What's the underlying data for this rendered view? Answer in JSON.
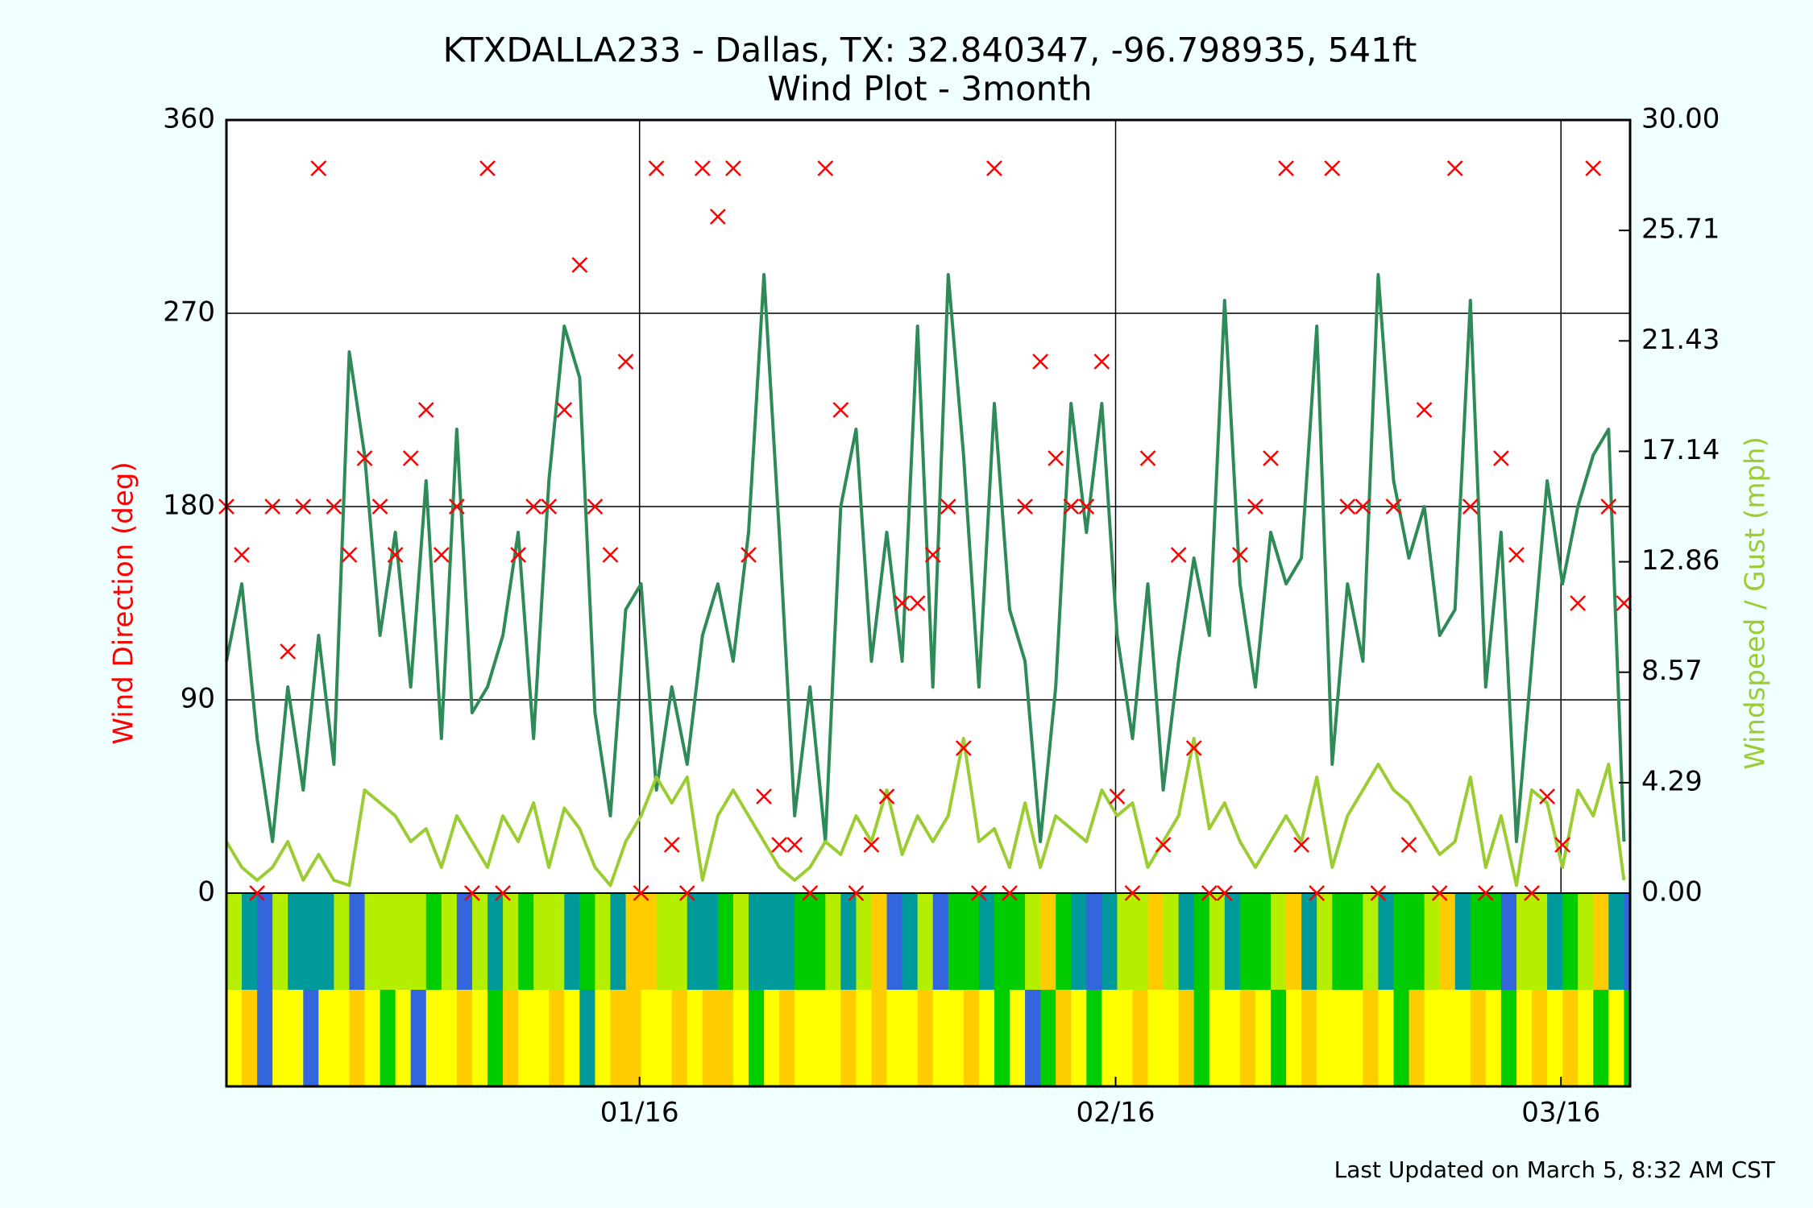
{
  "chart_data": {
    "type": "line",
    "title": "KTXDALLA233 - Dallas, TX: 32.840347, -96.798935, 541ft",
    "subtitle": "Wind Plot - 3month",
    "ylabel": "Wind Direction (deg)",
    "y2label": "Windspeed / Gust (mph)",
    "footer": "Last Updated on March 5, 8:32 AM CST",
    "grid": true,
    "x": [
      0,
      1,
      2,
      3,
      4,
      5,
      6,
      7,
      8,
      9,
      10,
      11,
      12,
      13,
      14,
      15,
      16,
      17,
      18,
      19,
      20,
      21,
      22,
      23,
      24,
      25,
      26,
      27,
      28,
      29,
      30,
      31,
      32,
      33,
      34,
      35,
      36,
      37,
      38,
      39,
      40,
      41,
      42,
      43,
      44,
      45,
      46,
      47,
      48,
      49,
      50,
      51,
      52,
      53,
      54,
      55,
      56,
      57,
      58,
      59,
      60,
      61,
      62,
      63,
      64,
      65,
      66,
      67,
      68,
      69,
      70,
      71,
      72,
      73,
      74,
      75,
      76,
      77,
      78,
      79,
      80,
      81,
      82,
      83,
      84,
      85,
      86,
      87,
      88,
      89,
      90,
      91
    ],
    "xlim": [
      0,
      91.4
    ],
    "xticks": [
      {
        "value": 26.9,
        "label": "01/16"
      },
      {
        "value": 57.9,
        "label": "02/16"
      },
      {
        "value": 86.9,
        "label": "03/16"
      }
    ],
    "ylim": [
      -90,
      360
    ],
    "yticks": [
      0,
      90,
      180,
      270,
      360
    ],
    "y2lim": [
      -7.5,
      30
    ],
    "y2ticks": [
      {
        "value": 0,
        "label": "0.00"
      },
      {
        "value": 4.2857,
        "label": "4.29"
      },
      {
        "value": 8.5714,
        "label": "8.57"
      },
      {
        "value": 12.8571,
        "label": "12.86"
      },
      {
        "value": 17.1429,
        "label": "17.14"
      },
      {
        "value": 21.4286,
        "label": "21.43"
      },
      {
        "value": 25.7143,
        "label": "25.71"
      },
      {
        "value": 30,
        "label": "30.00"
      }
    ],
    "series": [
      {
        "type": "scatter",
        "color": "#ff0000",
        "values": [
          180,
          157.5,
          0,
          180,
          112.5,
          180,
          337.5,
          180,
          157.5,
          202.5,
          180,
          157.5,
          202.5,
          225,
          157.5,
          180,
          0,
          337.5,
          0,
          157.5,
          180,
          180,
          225,
          292.5,
          180,
          157.5,
          247.5,
          0,
          337.5,
          22.5,
          0,
          337.5,
          315,
          337.5,
          157.5,
          45,
          22.5,
          22.5,
          0,
          337.5,
          225,
          0,
          22.5,
          45,
          135,
          135,
          157.5,
          180,
          67.5,
          0,
          337.5,
          0,
          180,
          247.5,
          202.5,
          180,
          180,
          247.5,
          45,
          0,
          202.5,
          22.5,
          157.5,
          67.5,
          0,
          0,
          157.5,
          180,
          202.5,
          337.5,
          22.5,
          0,
          337.5,
          180,
          180,
          0,
          180,
          22.5,
          225,
          0,
          337.5,
          180,
          0,
          202.5,
          157.5,
          0,
          45,
          22.5,
          135,
          337.5,
          180,
          135
        ]
      },
      {
        "type": "line",
        "axis": "y2",
        "color": "#2e8b57",
        "values": [
          9,
          12,
          6,
          2,
          8,
          4,
          10,
          5,
          21,
          17,
          10,
          14,
          8,
          16,
          6,
          18,
          7,
          8,
          10,
          14,
          6,
          16,
          22,
          20,
          7,
          3,
          11,
          12,
          4,
          8,
          5,
          10,
          12,
          9,
          14,
          24,
          14,
          3,
          8,
          2,
          15,
          18,
          9,
          14,
          9,
          22,
          8,
          24,
          17,
          8,
          19,
          11,
          9,
          2,
          8,
          19,
          14,
          19,
          10,
          6,
          12,
          4,
          9,
          13,
          10,
          23,
          12,
          8,
          14,
          12,
          13,
          22,
          5,
          12,
          9,
          24,
          16,
          13,
          15,
          10,
          11,
          23,
          8,
          14,
          2,
          9,
          16,
          12,
          15,
          17,
          18,
          2
        ]
      },
      {
        "type": "line",
        "axis": "y2",
        "color": "#9acd32",
        "values": [
          2,
          1,
          0.5,
          1,
          2,
          0.5,
          1.5,
          0.5,
          0.3,
          4,
          3.5,
          3,
          2,
          2.5,
          1,
          3,
          2,
          1,
          3,
          2,
          3.5,
          1,
          3.3,
          2.5,
          1,
          0.3,
          2,
          3,
          4.5,
          3.5,
          4.5,
          0.5,
          3,
          4,
          3,
          2,
          1,
          0.5,
          1,
          2,
          1.5,
          3,
          2,
          4,
          1.5,
          3,
          2,
          3,
          6,
          2,
          2.5,
          1,
          3.5,
          1,
          3,
          2.5,
          2,
          4,
          3,
          3.5,
          1,
          2,
          3,
          6,
          2.5,
          3.5,
          2,
          1,
          2,
          3,
          2,
          4.5,
          1,
          3,
          4,
          5,
          4,
          3.5,
          2.5,
          1.5,
          2,
          4.5,
          1,
          3,
          0.3,
          4,
          3.5,
          1,
          4,
          3,
          5,
          0.5
        ]
      }
    ],
    "bands": [
      {
        "colors": [
          "#b4ee00",
          "#009a9a",
          "#3366dd",
          "#b4ee00",
          "#009a9a",
          "#009a9a",
          "#009a9a",
          "#b4ee00",
          "#3366dd",
          "#b4ee00",
          "#b4ee00",
          "#b4ee00",
          "#b4ee00",
          "#00cc00",
          "#b4ee00",
          "#3366dd",
          "#b4ee00",
          "#009a9a",
          "#b4ee00",
          "#00cc00",
          "#b4ee00",
          "#b4ee00",
          "#009a9a",
          "#00cc00",
          "#b4ee00",
          "#009a9a",
          "#ffcc00",
          "#ffcc00",
          "#b4ee00",
          "#b4ee00",
          "#009a9a",
          "#009a9a",
          "#00cc00",
          "#b4ee00",
          "#009a9a",
          "#009a9a",
          "#009a9a",
          "#00cc00",
          "#00cc00",
          "#b4ee00",
          "#009a9a",
          "#b4ee00",
          "#ffcc00",
          "#3366dd",
          "#009a9a",
          "#b4ee00",
          "#3366dd",
          "#00cc00",
          "#00cc00",
          "#009a9a",
          "#00cc00",
          "#00cc00",
          "#b4ee00",
          "#ffcc00",
          "#00cc00",
          "#009a9a",
          "#3366dd",
          "#009a9a",
          "#b4ee00",
          "#b4ee00",
          "#ffcc00",
          "#b4ee00",
          "#009a9a",
          "#00cc00",
          "#b4ee00",
          "#009a9a",
          "#00cc00",
          "#00cc00",
          "#b4ee00",
          "#ffcc00",
          "#009a9a",
          "#b4ee00",
          "#00cc00",
          "#00cc00",
          "#b4ee00",
          "#009a9a",
          "#00cc00",
          "#00cc00",
          "#b4ee00",
          "#ffcc00",
          "#009a9a",
          "#00cc00",
          "#00cc00",
          "#3366dd",
          "#b4ee00",
          "#b4ee00",
          "#009a9a",
          "#00cc00",
          "#b4ee00",
          "#ffcc00",
          "#009a9a",
          "#3366dd"
        ]
      },
      {
        "colors": [
          "#ffff00",
          "#ffcc00",
          "#3366dd",
          "#ffff00",
          "#ffff00",
          "#3366dd",
          "#ffff00",
          "#ffff00",
          "#ffcc00",
          "#ffff00",
          "#00cc00",
          "#ffff00",
          "#3366dd",
          "#ffff00",
          "#ffff00",
          "#ffcc00",
          "#ffff00",
          "#00cc00",
          "#ffcc00",
          "#ffff00",
          "#ffff00",
          "#ffcc00",
          "#ffff00",
          "#009a9a",
          "#ffff00",
          "#ffcc00",
          "#ffcc00",
          "#ffff00",
          "#ffff00",
          "#ffcc00",
          "#ffff00",
          "#ffcc00",
          "#ffcc00",
          "#ffff00",
          "#00cc00",
          "#ffff00",
          "#ffcc00",
          "#ffff00",
          "#ffff00",
          "#ffff00",
          "#ffcc00",
          "#ffff00",
          "#ffcc00",
          "#ffff00",
          "#ffff00",
          "#ffcc00",
          "#ffff00",
          "#ffff00",
          "#ffcc00",
          "#ffff00",
          "#00cc00",
          "#ffff00",
          "#3366dd",
          "#00cc00",
          "#ffcc00",
          "#ffff00",
          "#00cc00",
          "#ffff00",
          "#ffff00",
          "#ffcc00",
          "#ffff00",
          "#ffff00",
          "#ffcc00",
          "#00cc00",
          "#ffff00",
          "#ffff00",
          "#ffcc00",
          "#ffff00",
          "#00cc00",
          "#ffff00",
          "#ffcc00",
          "#ffff00",
          "#ffff00",
          "#ffff00",
          "#ffcc00",
          "#ffff00",
          "#00cc00",
          "#ffcc00",
          "#ffff00",
          "#ffff00",
          "#ffff00",
          "#ffcc00",
          "#ffff00",
          "#00cc00",
          "#ffff00",
          "#ffcc00",
          "#ffff00",
          "#ffcc00",
          "#ffff00",
          "#00cc00",
          "#ffff00",
          "#00cc00"
        ]
      }
    ]
  }
}
